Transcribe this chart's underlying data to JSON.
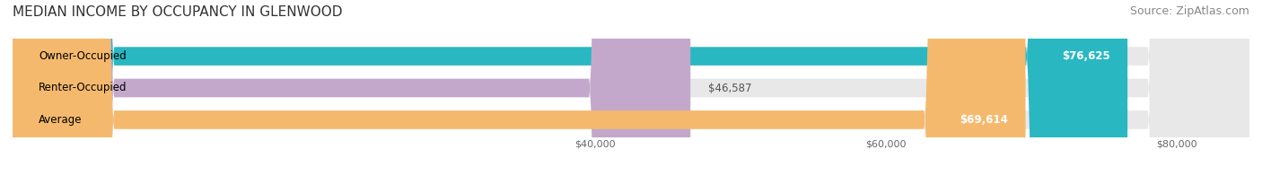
{
  "title": "MEDIAN INCOME BY OCCUPANCY IN GLENWOOD",
  "source": "Source: ZipAtlas.com",
  "categories": [
    "Owner-Occupied",
    "Renter-Occupied",
    "Average"
  ],
  "values": [
    76625,
    46587,
    69614
  ],
  "labels": [
    "$76,625",
    "$46,587",
    "$69,614"
  ],
  "bar_colors": [
    "#29b8c2",
    "#c4a8cc",
    "#f5b96e"
  ],
  "bar_background": "#e8e8e8",
  "xlim": [
    0,
    85000
  ],
  "xticks": [
    40000,
    60000,
    80000
  ],
  "xticklabels": [
    "$40,000",
    "$60,000",
    "$80,000"
  ],
  "title_fontsize": 11,
  "source_fontsize": 9,
  "label_fontsize": 8.5,
  "cat_fontsize": 8.5,
  "bar_height": 0.58,
  "figsize": [
    14.06,
    1.96
  ],
  "dpi": 100
}
